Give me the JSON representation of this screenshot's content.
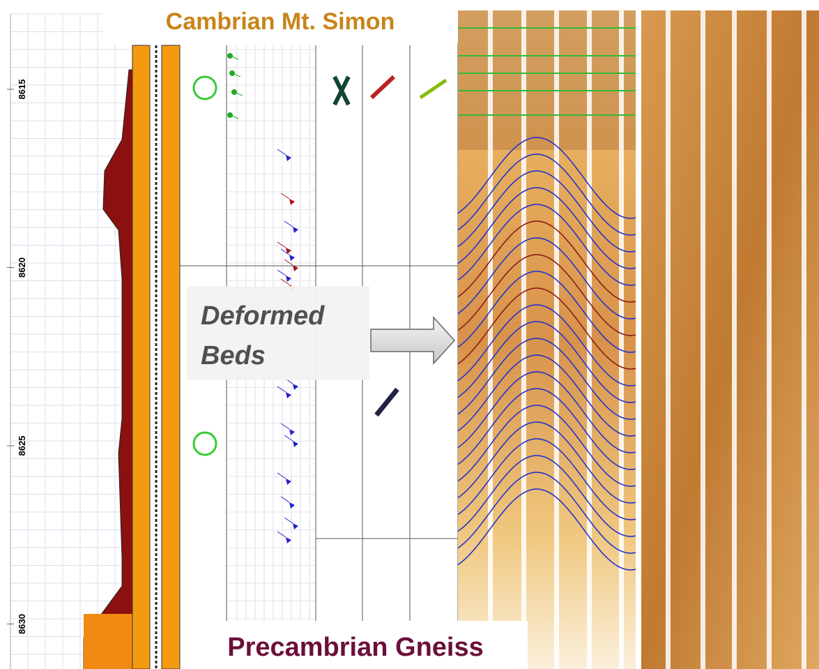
{
  "labels": {
    "top_formation": "Cambrian Mt. Simon",
    "feature": [
      "Deformed",
      "Beds"
    ],
    "bottom_formation": "Precambrian Gneiss"
  },
  "depth_labels": [
    8615,
    8620,
    8625,
    8630
  ]
}
